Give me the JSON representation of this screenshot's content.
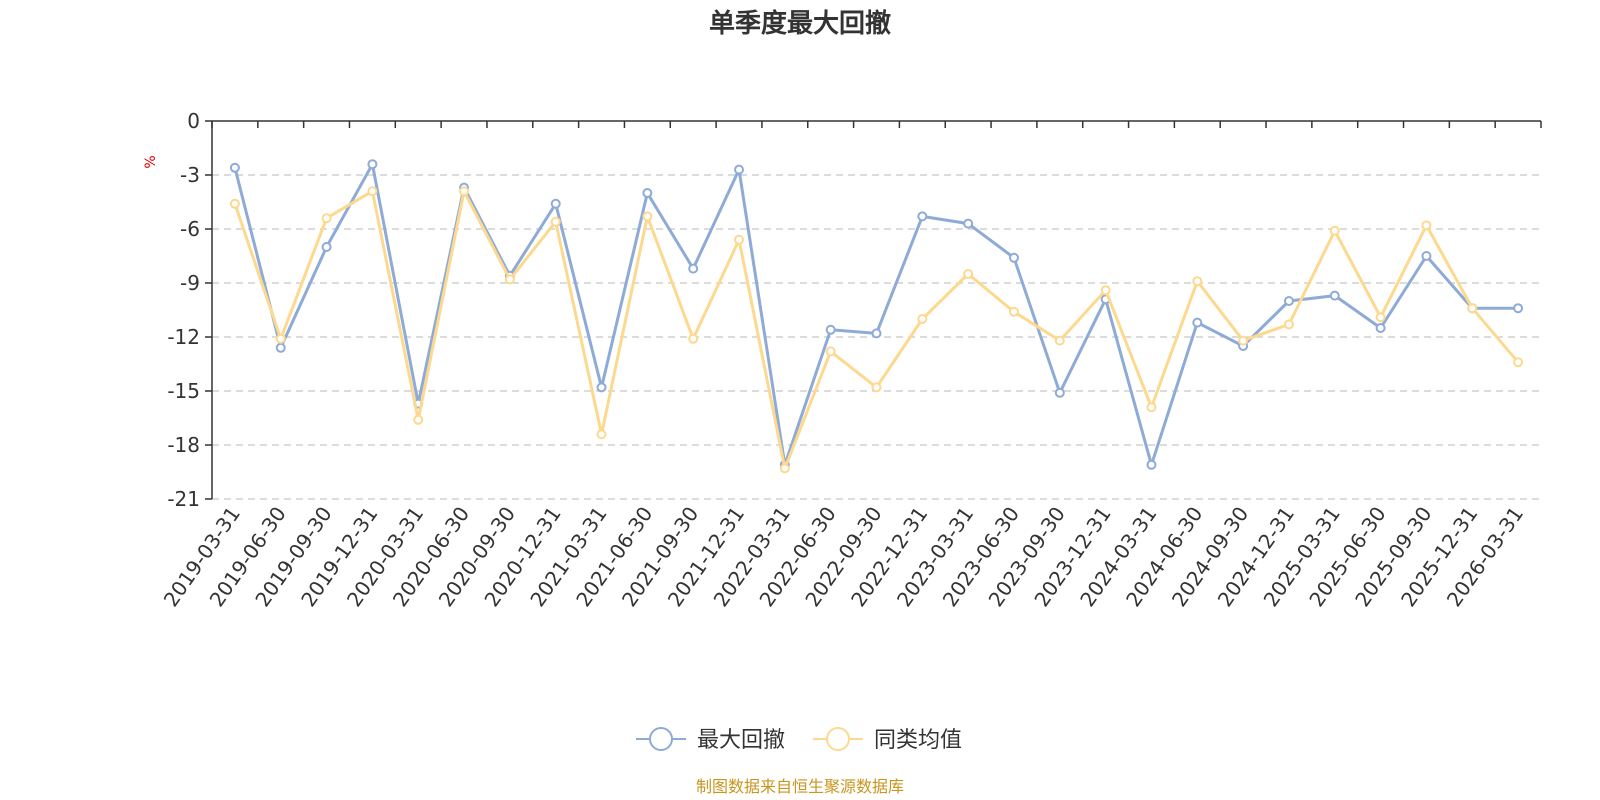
{
  "chart_data": {
    "type": "line",
    "title": "单季度最大回撤",
    "ylabel": "%",
    "xlabel": "",
    "ylim": [
      -21,
      0
    ],
    "yticks": [
      0,
      -3,
      -6,
      -9,
      -12,
      -15,
      -18,
      -21
    ],
    "grid": true,
    "legend_position": "bottom-center",
    "categories": [
      "2019-03-31",
      "2019-06-30",
      "2019-09-30",
      "2019-12-31",
      "2020-03-31",
      "2020-06-30",
      "2020-09-30",
      "2020-12-31",
      "2021-03-31",
      "2021-06-30",
      "2021-09-30",
      "2021-12-31",
      "2022-03-31",
      "2022-06-30",
      "2022-09-30",
      "2022-12-31",
      "2023-03-31",
      "2023-06-30",
      "2023-09-30",
      "2023-12-31",
      "2024-03-31",
      "2024-06-30",
      "2024-09-30",
      "2024-12-31",
      "2025-03-31",
      "2025-06-30",
      "2025-09-30",
      "2025-12-31",
      "2026-03-31"
    ],
    "series": [
      {
        "name": "最大回撤",
        "color": "#8eaad6",
        "values": [
          -2.6,
          -12.6,
          -7.0,
          -2.4,
          -15.7,
          -3.7,
          -8.6,
          -4.6,
          -14.8,
          -4.0,
          -8.2,
          -2.7,
          -19.1,
          -11.6,
          -11.8,
          -5.3,
          -5.7,
          -7.6,
          -15.1,
          -9.9,
          -19.1,
          -11.2,
          -12.5,
          -10.0,
          -9.7,
          -11.5,
          -7.5,
          -10.4,
          -10.4
        ]
      },
      {
        "name": "同类均值",
        "color": "#fcd98e",
        "values": [
          -4.6,
          -12.1,
          -5.4,
          -3.9,
          -16.6,
          -3.9,
          -8.8,
          -5.6,
          -17.4,
          -5.3,
          -12.1,
          -6.6,
          -19.3,
          -12.8,
          -14.8,
          -11.0,
          -8.5,
          -10.6,
          -12.2,
          -9.4,
          -15.9,
          -8.9,
          -12.2,
          -11.3,
          -6.1,
          -10.9,
          -5.8,
          -10.4,
          -13.4
        ]
      }
    ]
  },
  "source_note": "制图数据来自恒生聚源数据库"
}
